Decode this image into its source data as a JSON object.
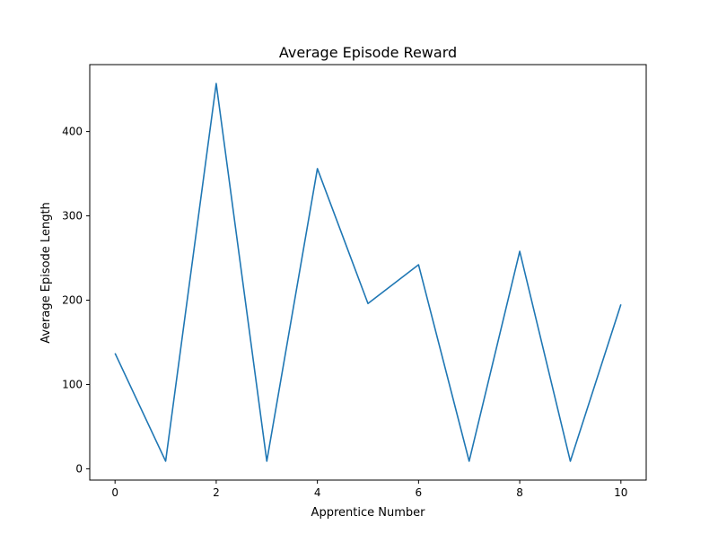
{
  "chart_data": {
    "type": "line",
    "title": "Average Episode Reward",
    "xlabel": "Apprentice Number",
    "ylabel": "Average Episode Length",
    "x": [
      0,
      1,
      2,
      3,
      4,
      5,
      6,
      7,
      8,
      9,
      10
    ],
    "series": [
      {
        "values": [
          137,
          9,
          457,
          9,
          356,
          196,
          242,
          9,
          258,
          9,
          195
        ],
        "color": "#1f77b4"
      }
    ],
    "xlim": [
      -0.5,
      10.5
    ],
    "ylim": [
      -13.4,
      479.4
    ],
    "xticks": [
      0,
      2,
      4,
      6,
      8,
      10
    ],
    "yticks": [
      0,
      100,
      200,
      300,
      400
    ],
    "grid": false,
    "legend": "none"
  }
}
